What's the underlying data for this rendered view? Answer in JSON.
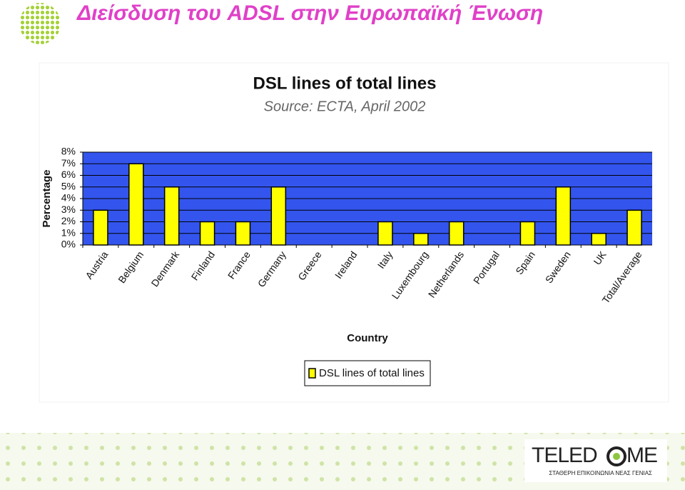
{
  "slide_title": "Διείσδυση του ADSL στην Ευρωπαϊκή Ένωση",
  "logo": {
    "parts": [
      "TELED",
      "ME"
    ],
    "tagline": "ΣΤΑΘΕΡΗ ΕΠΙΚΟΙΝΩΝΙΑ ΝΕΑΣ ΓΕΝΙΑΣ"
  },
  "chart_data": {
    "type": "bar",
    "title": "DSL lines of total lines",
    "subtitle": "Source: ECTA, April 2002",
    "x_label": "Country",
    "y_label": "Percentage",
    "categories": [
      "Austria",
      "Belgium",
      "Denmark",
      "Finland",
      "France",
      "Germany",
      "Greece",
      "Ireland",
      "Italy",
      "Luxembourg",
      "Netherlands",
      "Portugal",
      "Spain",
      "Sweden",
      "UK",
      "Total/Average"
    ],
    "series": [
      {
        "name": "DSL lines of total lines",
        "color": "#ffff00",
        "values": [
          3,
          7,
          5,
          2,
          2,
          5,
          0,
          0,
          2,
          1,
          2,
          0,
          2,
          5,
          1,
          3
        ]
      }
    ],
    "ylim": [
      0,
      8
    ],
    "yticks": [
      {
        "value": 0,
        "label": "0%"
      },
      {
        "value": 1,
        "label": "1%"
      },
      {
        "value": 2,
        "label": "2%"
      },
      {
        "value": 3,
        "label": "3%"
      },
      {
        "value": 4,
        "label": "4%"
      },
      {
        "value": 5,
        "label": "5%"
      },
      {
        "value": 6,
        "label": "6%"
      },
      {
        "value": 7,
        "label": "7%"
      },
      {
        "value": 8,
        "label": "8%"
      }
    ],
    "grid": true,
    "plot_background": "#3355ee",
    "legend": "bottom"
  }
}
